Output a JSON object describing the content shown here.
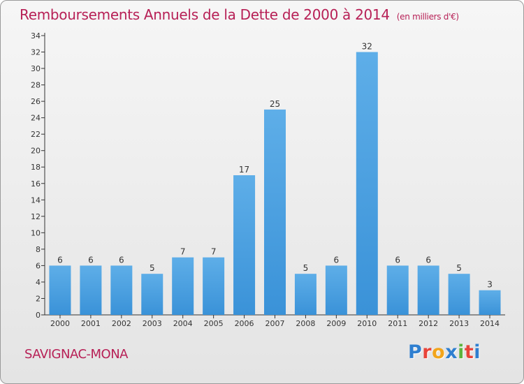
{
  "chart_data": {
    "type": "bar",
    "title": "Remboursements Annuels de la Dette de 2000 à 2014",
    "subtitle": "(en milliers d'€)",
    "categories": [
      "2000",
      "2001",
      "2002",
      "2003",
      "2004",
      "2005",
      "2006",
      "2007",
      "2008",
      "2009",
      "2010",
      "2011",
      "2012",
      "2013",
      "2014"
    ],
    "values": [
      6,
      6,
      6,
      5,
      7,
      7,
      17,
      25,
      5,
      6,
      32,
      6,
      6,
      5,
      3
    ],
    "ylim": [
      0,
      34
    ],
    "ytick_step": 2,
    "grid": false,
    "bar_color": "#3a92d8",
    "data_labels": true
  },
  "footer": {
    "commune": "SAVIGNAC-MONA"
  },
  "brand": {
    "letters": [
      "P",
      "r",
      "o",
      "x",
      "i",
      "t",
      "i"
    ],
    "colors": [
      "#2f7fd0",
      "#e8443a",
      "#f2a51c",
      "#2f7fd0",
      "#5db33e",
      "#e8443a",
      "#2f7fd0"
    ]
  },
  "colors": {
    "title": "#b72056",
    "axis": "#333333"
  }
}
